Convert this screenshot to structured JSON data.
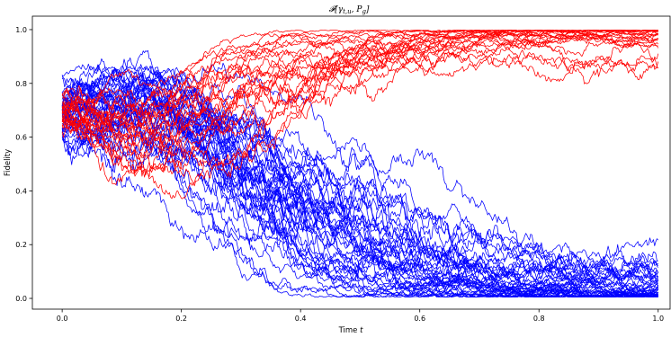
{
  "chart_data": {
    "type": "line",
    "title": "𝓕[γ_{t,u}, P_g]",
    "xlabel": "Time t",
    "ylabel": "Fidelity",
    "xlim": [
      -0.05,
      1.02
    ],
    "ylim": [
      -0.04,
      1.05
    ],
    "xticks": [
      0.0,
      0.2,
      0.4,
      0.6,
      0.8,
      1.0
    ],
    "xtick_labels": [
      "0.0",
      "0.2",
      "0.4",
      "0.6",
      "0.8",
      "1.0"
    ],
    "yticks": [
      0.0,
      0.2,
      0.4,
      0.6,
      0.8,
      1.0
    ],
    "ytick_labels": [
      "0.0",
      "0.2",
      "0.4",
      "0.6",
      "0.8",
      "1.0"
    ],
    "grid": false,
    "initial_value": 0.7,
    "series": [
      {
        "color": "#ff0000",
        "trajectories": 24,
        "final_range": [
          0.9,
          1.0
        ]
      },
      {
        "color": "#0000ff",
        "trajectories": 44,
        "final_range": [
          0.0,
          0.13
        ]
      }
    ]
  }
}
